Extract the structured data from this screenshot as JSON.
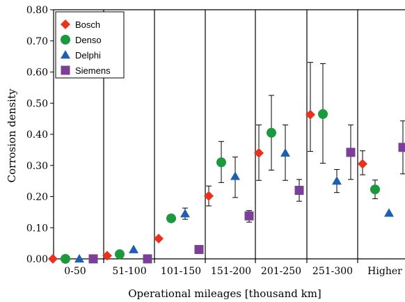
{
  "chart_data": {
    "type": "scatter",
    "xlabel": "Operational mileages [thousand km]",
    "ylabel": "Corrosion density",
    "ylim": [
      0,
      0.8
    ],
    "yticks": [
      "0.00",
      "0.10",
      "0.20",
      "0.30",
      "0.40",
      "0.50",
      "0.60",
      "0.70",
      "0.80"
    ],
    "ytick_values": [
      0,
      0.1,
      0.2,
      0.3,
      0.4,
      0.5,
      0.6,
      0.7,
      0.8
    ],
    "categories": [
      "0-50",
      "51-100",
      "101-150",
      "151-200",
      "201-250",
      "251-300",
      "Higher"
    ],
    "legend": "top-left",
    "grid": false,
    "series": [
      {
        "name": "Bosch",
        "marker": "diamond",
        "color": "#e8321e",
        "values": [
          0.0,
          0.01,
          0.065,
          0.202,
          0.34,
          0.463,
          0.305
        ],
        "err_low": [
          0,
          0,
          0,
          0.032,
          0.088,
          0.118,
          0.035
        ],
        "err_high": [
          0,
          0,
          0,
          0.032,
          0.09,
          0.168,
          0.042
        ]
      },
      {
        "name": "Denso",
        "marker": "circle",
        "color": "#1a9a3c",
        "values": [
          0.0,
          0.015,
          0.13,
          0.31,
          0.405,
          0.465,
          0.223
        ],
        "err_low": [
          0,
          0,
          0.008,
          0.065,
          0.12,
          0.158,
          0.03
        ],
        "err_high": [
          0,
          0,
          0.01,
          0.067,
          0.12,
          0.162,
          0.03
        ]
      },
      {
        "name": "Delphi",
        "marker": "triangle",
        "color": "#1f5fb0",
        "values": [
          0.0,
          0.03,
          0.145,
          0.265,
          0.34,
          0.25,
          0.147
        ],
        "err_low": [
          0,
          0,
          0.018,
          0.068,
          0.088,
          0.037,
          0
        ],
        "err_high": [
          0,
          0,
          0.018,
          0.062,
          0.09,
          0.037,
          0
        ]
      },
      {
        "name": "Siemens",
        "marker": "square",
        "color": "#7b3f98",
        "values": [
          0.0,
          0.0,
          0.03,
          0.138,
          0.22,
          0.342,
          0.358
        ],
        "err_low": [
          0,
          0,
          0,
          0.02,
          0.035,
          0.087,
          0.085
        ],
        "err_high": [
          0,
          0,
          0,
          0.017,
          0.035,
          0.088,
          0.085
        ]
      }
    ]
  }
}
